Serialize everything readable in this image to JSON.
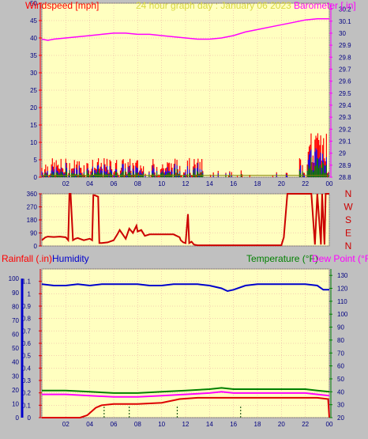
{
  "header": {
    "left_label": "Windspeed [mph]",
    "center_label": "24 hour graph day : January 06 2023",
    "right_label": "Barometer [.in]"
  },
  "colors": {
    "frame": "#d8d8d8",
    "plot_bg": "#ffffc0",
    "grid": "#e8a0a0",
    "wind": "#ff0000",
    "gust": "#0000ff",
    "avg": "#008000",
    "baro": "#ff00ff",
    "dir": "#cc0000",
    "rain": "#dd0000",
    "hum": "#0000cc",
    "temp": "#008000",
    "dew": "#ff00ff",
    "title": "#d8d840"
  },
  "x_ticks": [
    "02",
    "04",
    "06",
    "08",
    "10",
    "12",
    "14",
    "16",
    "18",
    "20",
    "22",
    "00"
  ],
  "wind_chart": {
    "y_left_ticks": [
      "0",
      "5",
      "10",
      "15",
      "20",
      "25",
      "30",
      "35",
      "40",
      "45",
      "50"
    ],
    "y_right_ticks": [
      "28.8",
      "28.9",
      "29",
      "29.1",
      "29.2",
      "29.3",
      "29.4",
      "29.5",
      "29.6",
      "29.7",
      "29.8",
      "29.9",
      "30",
      "30.1",
      "30.2"
    ]
  },
  "dir_chart": {
    "y_left_ticks": [
      "0",
      "90",
      "180",
      "270",
      "360"
    ],
    "compass": [
      "N",
      "W",
      "S",
      "E",
      "N"
    ]
  },
  "weather_chart": {
    "rain_label": "Rainfall (.in)",
    "hum_label": "Humidity",
    "temp_label": "Temperature (°F)",
    "dew_label": "Dew Point (°F)",
    "y_left_ticks": [
      "0",
      "0.1",
      "0.2",
      "0.3",
      "0.4",
      "0.5",
      "0.6",
      "0.7",
      "0.8",
      "0.9",
      "1",
      "1.1"
    ],
    "y_hum_ticks": [
      "0",
      "10",
      "20",
      "30",
      "40",
      "50",
      "60",
      "70",
      "80",
      "90",
      "100"
    ],
    "y_right_ticks": [
      "20",
      "30",
      "40",
      "50",
      "60",
      "70",
      "80",
      "90",
      "100",
      "110",
      "120",
      "130"
    ]
  },
  "chart_data": [
    {
      "type": "line",
      "title": "24 hour graph day : January 06 2023",
      "xlabel": "",
      "ylabel": "Windspeed [mph]",
      "y2label": "Barometer [.in]",
      "x_range_hours": [
        0,
        24
      ],
      "ylim": [
        0,
        50
      ],
      "y2lim": [
        28.8,
        30.25
      ],
      "series": [
        {
          "name": "Barometer [.in]",
          "x": [
            0,
            0.5,
            1,
            2,
            3,
            4,
            5,
            6,
            7,
            8,
            9,
            10,
            11,
            12,
            13,
            14,
            15,
            16,
            17,
            18,
            19,
            20,
            21,
            22,
            23,
            24
          ],
          "y": [
            29.95,
            29.94,
            29.95,
            29.96,
            29.97,
            29.98,
            29.99,
            30.0,
            30.0,
            29.99,
            29.99,
            29.98,
            29.97,
            29.96,
            29.95,
            29.95,
            29.96,
            29.98,
            30.01,
            30.03,
            30.05,
            30.07,
            30.09,
            30.11,
            30.12,
            30.12
          ]
        }
      ]
    },
    {
      "type": "line",
      "title": "",
      "xlabel": "",
      "ylabel": "",
      "x_range_hours": [
        0,
        24
      ],
      "ylim": [
        0,
        360
      ],
      "series": [
        {
          "name": "Wind Direction",
          "x": [
            0,
            0.3,
            0.5,
            1,
            1.5,
            2,
            2.2,
            2.3,
            2.4,
            2.6,
            2.8,
            3,
            3.5,
            4,
            4.2,
            4.3,
            4.4,
            4.7,
            4.8,
            5,
            5.5,
            6,
            6.3,
            6.5,
            7,
            7.3,
            7.6,
            7.9,
            8,
            8.3,
            8.6,
            9,
            9.5,
            10,
            11,
            11.5,
            11.6,
            11.8,
            12,
            12.2,
            12.3,
            12.5,
            12.7,
            13,
            14,
            15,
            16,
            17,
            18,
            19,
            20,
            20.2,
            20.5,
            21,
            22,
            22.5,
            22.8,
            23,
            23.3,
            23.4,
            23.6,
            23.7,
            24
          ],
          "y": [
            40,
            60,
            65,
            62,
            65,
            60,
            40,
            360,
            360,
            40,
            50,
            55,
            40,
            50,
            40,
            350,
            350,
            340,
            20,
            20,
            25,
            40,
            80,
            110,
            50,
            120,
            90,
            140,
            100,
            110,
            70,
            80,
            80,
            80,
            80,
            60,
            40,
            25,
            20,
            220,
            20,
            30,
            10,
            5,
            5,
            5,
            5,
            5,
            5,
            5,
            5,
            60,
            360,
            360,
            360,
            360,
            10,
            360,
            10,
            360,
            10,
            360,
            360
          ]
        }
      ]
    },
    {
      "type": "line",
      "title": "",
      "xlabel": "",
      "ylabel": "Rainfall (.in)",
      "y2label": "Temperature (°F)",
      "x_range_hours": [
        0,
        24
      ],
      "ylim": [
        0,
        1.2
      ],
      "y_hum_lim": [
        0,
        100
      ],
      "y2lim": [
        20,
        135
      ],
      "series": [
        {
          "name": "Humidity",
          "x": [
            0,
            1,
            2,
            3,
            4,
            5,
            6,
            7,
            8,
            9,
            10,
            11,
            12,
            13,
            14,
            15,
            15.5,
            16,
            17,
            18,
            19,
            20,
            21,
            22,
            23,
            23.5,
            24
          ],
          "y": [
            96,
            95,
            95,
            96,
            95,
            96,
            96,
            96,
            96,
            95,
            95,
            96,
            96,
            96,
            95,
            93,
            91,
            92,
            95,
            96,
            96,
            96,
            96,
            96,
            95,
            92,
            92
          ]
        },
        {
          "name": "Rainfall (.in)",
          "x": [
            0,
            3.2,
            3.8,
            4.5,
            5,
            6,
            8,
            10,
            11,
            11.5,
            13,
            16,
            20,
            23,
            23.9,
            24
          ],
          "y": [
            0,
            0,
            0.02,
            0.08,
            0.1,
            0.11,
            0.11,
            0.12,
            0.14,
            0.15,
            0.16,
            0.16,
            0.16,
            0.16,
            0.15,
            0
          ]
        },
        {
          "name": "Temperature (°F)",
          "x": [
            0,
            2,
            4,
            6,
            8,
            10,
            12,
            14,
            15,
            16,
            18,
            20,
            22,
            23,
            24
          ],
          "y": [
            41,
            41,
            40,
            39,
            39,
            40,
            41,
            42,
            43,
            42,
            42,
            42,
            42,
            41,
            40
          ]
        },
        {
          "name": "Dew Point (°F)",
          "x": [
            0,
            2,
            4,
            6,
            8,
            10,
            12,
            14,
            15,
            16,
            18,
            20,
            22,
            23,
            24
          ],
          "y": [
            38,
            38,
            37,
            36,
            36,
            37,
            38,
            39,
            40,
            39,
            39,
            39,
            39,
            38,
            37
          ]
        }
      ]
    }
  ]
}
